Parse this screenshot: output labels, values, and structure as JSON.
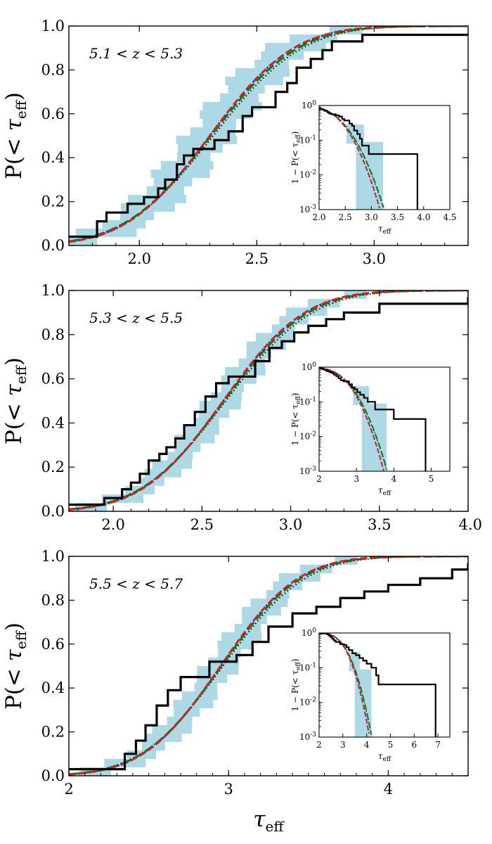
{
  "figure": {
    "ylabel_main": "P(",
    "ylabel_op": "< τ",
    "ylabel_sub": "eff",
    "ylabel_close": ")",
    "xlabel_main": "τ",
    "xlabel_sub": "eff",
    "inset_ylabel_main": "1 − P(< τ",
    "inset_ylabel_sub": "eff",
    "inset_ylabel_close": ")",
    "inset_xlabel_main": "τ",
    "inset_xlabel_sub": "eff"
  },
  "colors": {
    "observed": "#000000",
    "model_red": "#e41a1c",
    "model_blue": "#1f2ee0",
    "model_green": "#0a7a0a",
    "model_dotted": "#000000",
    "band": "#add8e6"
  },
  "chart_data": [
    {
      "type": "line",
      "title": "5.1 < z < 5.3",
      "xlabel": "τeff",
      "ylabel": "P(< τeff)",
      "xlim": [
        1.7,
        3.4
      ],
      "ylim": [
        0,
        1.0
      ],
      "xticks": [
        "2.0",
        "2.5",
        "3.0"
      ],
      "xtick_values": [
        2.0,
        2.5,
        3.0
      ],
      "yticks": [
        "0.0",
        "0.2",
        "0.4",
        "0.6",
        "0.8",
        "1.0"
      ],
      "model_mu": 2.3,
      "model_sigma": 0.28,
      "model_sigma_green": 0.29,
      "band_halfwidth": 0.1,
      "observed_step": {
        "x": [
          1.7,
          1.75,
          1.82,
          1.86,
          1.95,
          2.02,
          2.08,
          2.11,
          2.16,
          2.19,
          2.23,
          2.28,
          2.32,
          2.38,
          2.44,
          2.48,
          2.53,
          2.58,
          2.63,
          2.67,
          2.73,
          2.78,
          2.82,
          2.95,
          3.4
        ],
        "y": [
          0.04,
          0.04,
          0.11,
          0.15,
          0.19,
          0.22,
          0.26,
          0.3,
          0.37,
          0.41,
          0.44,
          0.44,
          0.48,
          0.52,
          0.59,
          0.63,
          0.63,
          0.7,
          0.74,
          0.81,
          0.85,
          0.89,
          0.93,
          0.96,
          0.96
        ]
      },
      "inset": {
        "xlim": [
          2.0,
          4.5
        ],
        "xticks": [
          "2.0",
          "2.5",
          "3.0",
          "3.5",
          "4.0",
          "4.5"
        ],
        "xtick_values": [
          2.0,
          2.5,
          3.0,
          3.5,
          4.0,
          4.5
        ],
        "ylim_log10": [
          -3,
          0
        ],
        "yticks": [
          "10^0",
          "10^-1",
          "10^-2",
          "10^-3"
        ],
        "obs_tail_x": [
          3.35,
          3.88
        ],
        "obs_tail_y": [
          0.04,
          0.04
        ]
      }
    },
    {
      "type": "line",
      "title": "5.3 < z < 5.5",
      "xlabel": "τeff",
      "ylabel": "P(< τeff)",
      "xlim": [
        1.75,
        4.0
      ],
      "ylim": [
        0,
        1.0
      ],
      "xticks": [
        "2.0",
        "2.5",
        "3.0",
        "3.5",
        "4.0"
      ],
      "xtick_values": [
        2.0,
        2.5,
        3.0,
        3.5,
        4.0
      ],
      "yticks": [
        "0.0",
        "0.2",
        "0.4",
        "0.6",
        "0.8",
        "1.0"
      ],
      "model_mu": 2.62,
      "model_sigma": 0.36,
      "model_sigma_green": 0.37,
      "band_halfwidth": 0.09,
      "observed_step": {
        "x": [
          1.75,
          1.8,
          1.95,
          2.05,
          2.1,
          2.15,
          2.2,
          2.26,
          2.3,
          2.35,
          2.4,
          2.46,
          2.52,
          2.58,
          2.65,
          2.73,
          2.8,
          2.88,
          2.95,
          3.02,
          3.1,
          3.2,
          3.3,
          3.5,
          4.0
        ],
        "y": [
          0.03,
          0.03,
          0.06,
          0.1,
          0.13,
          0.17,
          0.23,
          0.26,
          0.29,
          0.33,
          0.39,
          0.45,
          0.52,
          0.58,
          0.61,
          0.61,
          0.68,
          0.74,
          0.77,
          0.81,
          0.84,
          0.87,
          0.9,
          0.94,
          0.97
        ]
      },
      "inset": {
        "xlim": [
          2.0,
          5.5
        ],
        "xticks": [
          "2",
          "3",
          "4",
          "5"
        ],
        "xtick_values": [
          2,
          3,
          4,
          5
        ],
        "ylim_log10": [
          -3,
          0
        ],
        "yticks": [
          "10^0",
          "10^-1",
          "10^-2",
          "10^-3"
        ],
        "obs_tail_x": [
          3.82,
          4.85
        ],
        "obs_tail_y": [
          0.032,
          0.032
        ]
      }
    },
    {
      "type": "line",
      "title": "5.5 < z < 5.7",
      "xlabel": "τeff",
      "ylabel": "P(< τeff)",
      "xlim": [
        2.0,
        4.5
      ],
      "ylim": [
        0,
        1.0
      ],
      "xticks": [
        "2",
        "3",
        "4"
      ],
      "xtick_values": [
        2,
        3,
        4
      ],
      "yticks": [
        "0.0",
        "0.2",
        "0.4",
        "0.6",
        "0.8",
        "1.0"
      ],
      "model_mu": 2.95,
      "model_sigma": 0.38,
      "model_sigma_green": 0.39,
      "band_halfwidth": 0.1,
      "observed_step": {
        "x": [
          2.0,
          2.28,
          2.35,
          2.42,
          2.48,
          2.55,
          2.62,
          2.7,
          2.88,
          2.95,
          3.05,
          3.15,
          3.25,
          3.4,
          3.55,
          3.7,
          3.85,
          4.0,
          4.2,
          4.4,
          4.5
        ],
        "y": [
          0.03,
          0.03,
          0.1,
          0.16,
          0.23,
          0.32,
          0.39,
          0.45,
          0.52,
          0.52,
          0.55,
          0.61,
          0.68,
          0.74,
          0.77,
          0.81,
          0.84,
          0.87,
          0.9,
          0.94,
          0.97
        ]
      },
      "inset": {
        "xlim": [
          2.0,
          7.5
        ],
        "xticks": [
          "2",
          "3",
          "4",
          "5",
          "6",
          "7"
        ],
        "xtick_values": [
          2,
          3,
          4,
          5,
          6,
          7
        ],
        "ylim_log10": [
          -3,
          0
        ],
        "yticks": [
          "10^0",
          "10^-1",
          "10^-2",
          "10^-3"
        ],
        "obs_tail_x": [
          4.55,
          6.9
        ],
        "obs_tail_y": [
          0.033,
          0.033
        ]
      }
    }
  ]
}
